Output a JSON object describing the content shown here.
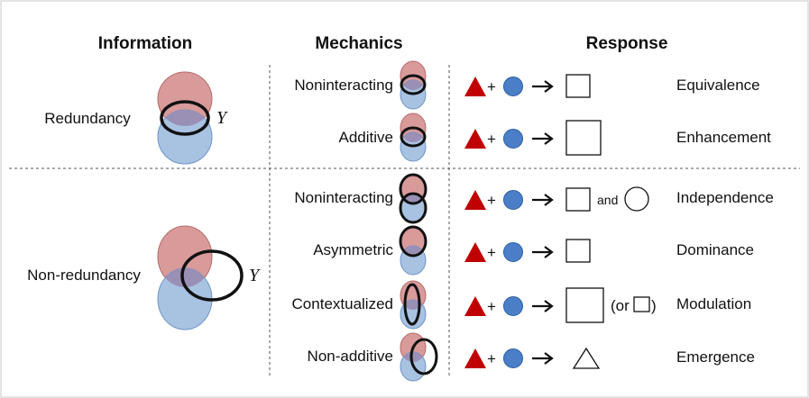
{
  "headers": {
    "information": "Information",
    "mechanics": "Mechanics",
    "response": "Response"
  },
  "information": {
    "redundancy": "Redundancy",
    "non_redundancy": "Non-redundancy",
    "y_label": "Y"
  },
  "mechanics": {
    "noninteracting_1": "Noninteracting",
    "additive": "Additive",
    "noninteracting_2": "Noninteracting",
    "asymmetric": "Asymmetric",
    "contextualized": "Contextualized",
    "non_additive": "Non-additive"
  },
  "response": {
    "plus": "+",
    "and": "and",
    "or_open": "(or",
    "or_close": ")",
    "equivalence": "Equivalence",
    "enhancement": "Enhancement",
    "independence": "Independence",
    "dominance": "Dominance",
    "modulation": "Modulation",
    "emergence": "Emergence"
  },
  "colors": {
    "red_fill": "#d99a9a",
    "red_stroke": "#b56a6a",
    "blue_fill": "#a8c2e2",
    "blue_stroke": "#6d94c6",
    "overlap": "#9a8fb5",
    "triangle": "#c00000",
    "circle": "#4a7fc8",
    "outline": "#111111"
  }
}
